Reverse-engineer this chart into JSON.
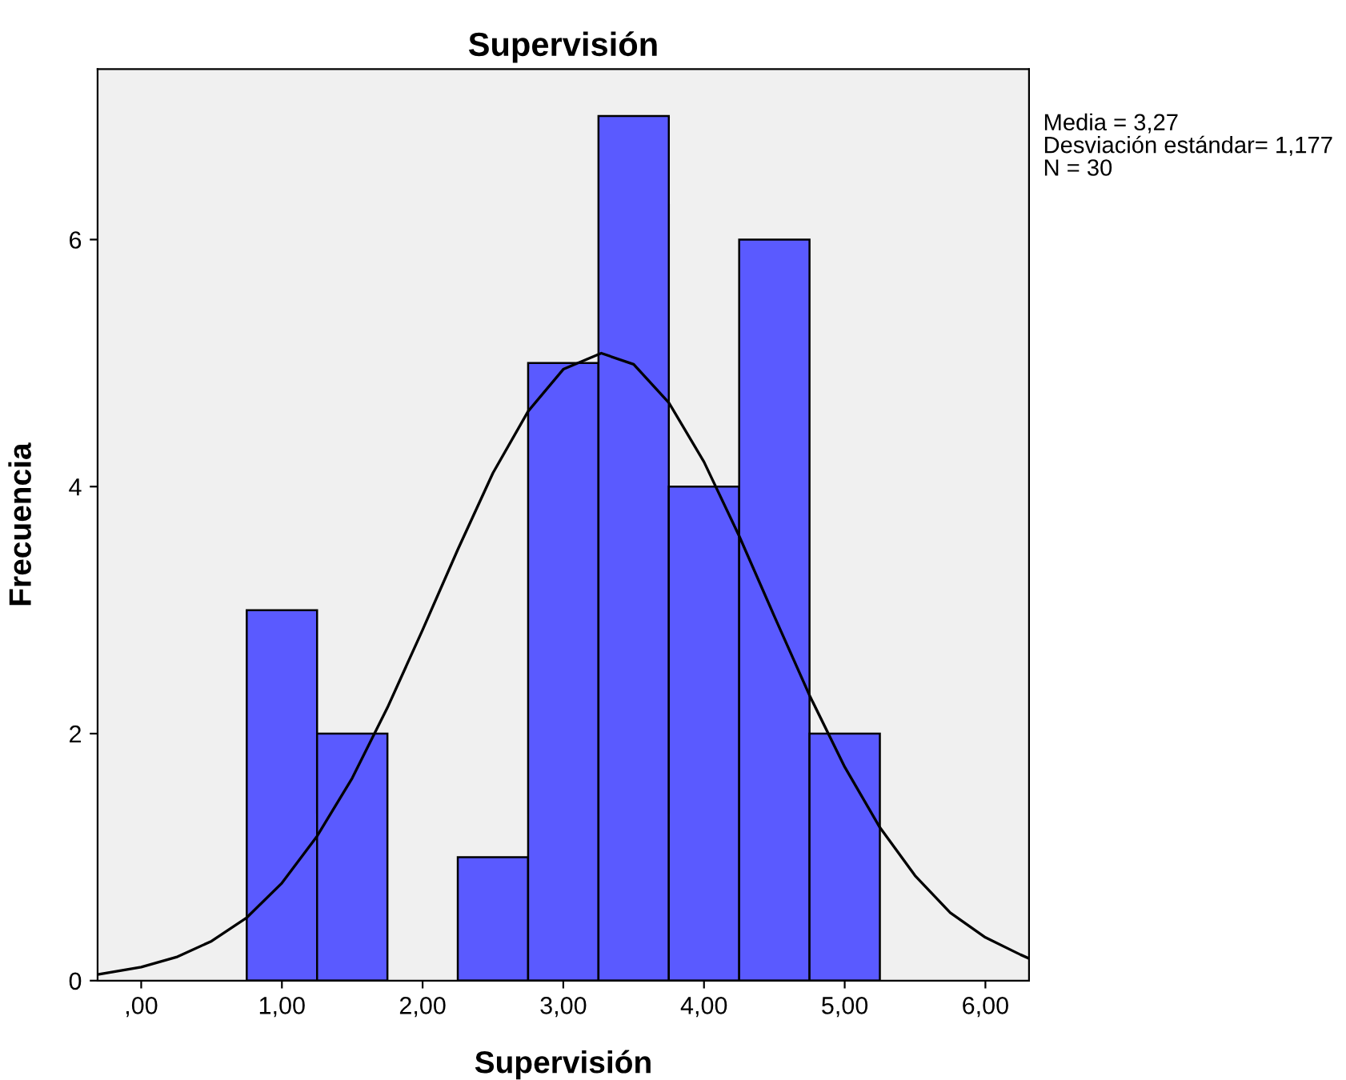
{
  "chart_data": {
    "type": "histogram",
    "title": "Supervisión",
    "xlabel": "Supervisión",
    "ylabel": "Frecuencia",
    "bins": [
      0.75,
      1.25,
      1.75,
      2.25,
      2.75,
      3.25,
      3.75,
      4.25,
      4.75,
      5.25
    ],
    "values": [
      3,
      2,
      0,
      1,
      5,
      7,
      4,
      6,
      2
    ],
    "color": "#5a5aff",
    "series": [
      {
        "type": "line",
        "color": "#000000",
        "x": [
          -0.31,
          0,
          0.25,
          0.5,
          0.75,
          1,
          1.25,
          1.5,
          1.75,
          2,
          2.25,
          2.5,
          2.75,
          3,
          3.27,
          3.5,
          3.75,
          4,
          4.25,
          4.5,
          4.75,
          5,
          5.25,
          5.5,
          5.75,
          6,
          6.25,
          6.31
        ],
        "values": [
          0.05,
          0.11,
          0.19,
          0.32,
          0.51,
          0.79,
          1.17,
          1.64,
          2.21,
          2.84,
          3.49,
          4.11,
          4.61,
          4.95,
          5.08,
          4.99,
          4.68,
          4.2,
          3.6,
          2.95,
          2.31,
          1.73,
          1.24,
          0.85,
          0.55,
          0.35,
          0.21,
          0.18
        ]
      }
    ],
    "xlim": [
      -0.31,
      6.31
    ],
    "xticks": [
      {
        "value": 0,
        "label": ",00"
      },
      {
        "value": 1,
        "label": "1,00"
      },
      {
        "value": 2,
        "label": "2,00"
      },
      {
        "value": 3,
        "label": "3,00"
      },
      {
        "value": 4,
        "label": "4,00"
      },
      {
        "value": 5,
        "label": "5,00"
      },
      {
        "value": 6,
        "label": "6,00"
      }
    ],
    "ylim": [
      0,
      7.38
    ],
    "yticks": [
      0,
      2,
      4,
      6
    ],
    "annotations": [
      "Media = 3,27",
      "Desviación estándar= 1,177",
      "N = 30"
    ]
  }
}
